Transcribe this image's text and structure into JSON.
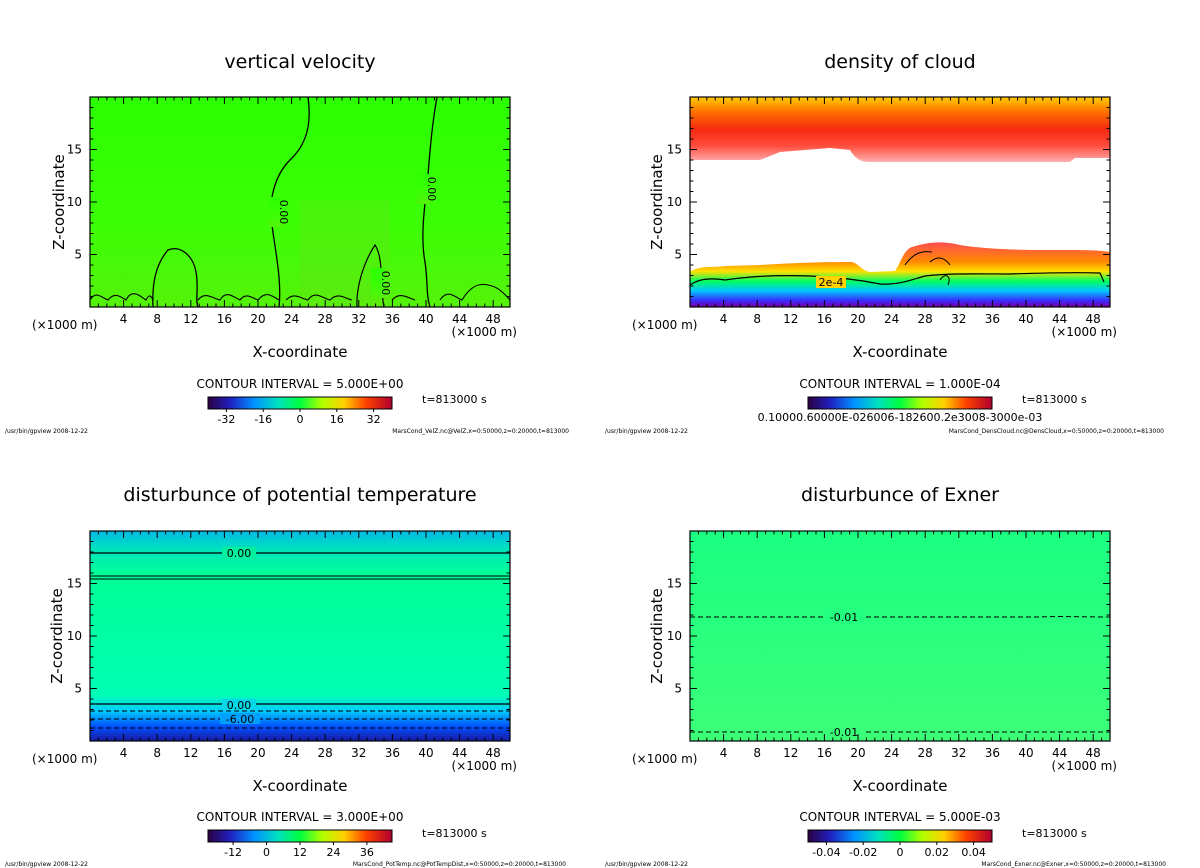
{
  "chart_data": [
    {
      "type": "heatmap",
      "title": "vertical velocity",
      "xlabel": "X-coordinate",
      "ylabel": "Z-coordinate",
      "x_unit": "(×1000 m)",
      "x_ticks": [
        "4",
        "8",
        "12",
        "16",
        "20",
        "24",
        "28",
        "32",
        "36",
        "40",
        "44",
        "48"
      ],
      "y_ticks": [
        "5",
        "10",
        "15"
      ],
      "xlim": [
        0,
        50
      ],
      "ylim": [
        0,
        20
      ],
      "contour_interval": "CONTOUR INTERVAL = 5.000E+00",
      "time": "t=813000 s",
      "colorbar_ticks": [
        "-32",
        "-16",
        "0",
        "16",
        "32"
      ],
      "colorbar_range": [
        -40,
        40
      ],
      "contour_labels": [
        {
          "text": "0.00",
          "x": 22,
          "y": 10.2,
          "rotate": 90
        },
        {
          "text": "0.00",
          "x": 40,
          "y": 11,
          "rotate": 90
        },
        {
          "text": "0.00",
          "x": 34,
          "y": 2.5,
          "rotate": 90
        }
      ],
      "footer_left": "/usr/bin/gpview  2008-12-22",
      "footer_right": "MarsCond_VelZ.nc@VelZ,x=0:50000,z=0:20000,t=813000"
    },
    {
      "type": "heatmap",
      "title": "density of cloud",
      "xlabel": "X-coordinate",
      "ylabel": "Z-coordinate",
      "x_unit": "(×1000 m)",
      "x_ticks": [
        "4",
        "8",
        "12",
        "16",
        "20",
        "24",
        "28",
        "32",
        "36",
        "40",
        "44",
        "48"
      ],
      "y_ticks": [
        "5",
        "10",
        "15"
      ],
      "xlim": [
        0,
        50
      ],
      "ylim": [
        0,
        20
      ],
      "contour_interval": "CONTOUR INTERVAL = 1.000E-04",
      "time": "t=813000 s",
      "colorbar_tick_text": "0.10000.60000E-026006-182600.2e3008-3000e-03",
      "contour_labels": [
        {
          "text": "2e-4",
          "x": 17,
          "y": 2.3,
          "rotate": 0
        }
      ],
      "footer_left": "/usr/bin/gpview  2008-12-22",
      "footer_right": "MarsCond_DensCloud.nc@DensCloud,x=0:50000,z=0:20000,t=813000"
    },
    {
      "type": "heatmap",
      "title": "disturbunce of potential temperature",
      "xlabel": "X-coordinate",
      "ylabel": "Z-coordinate",
      "x_unit": "(×1000 m)",
      "x_ticks": [
        "4",
        "8",
        "12",
        "16",
        "20",
        "24",
        "28",
        "32",
        "36",
        "40",
        "44",
        "48"
      ],
      "y_ticks": [
        "5",
        "10",
        "15"
      ],
      "xlim": [
        0,
        50
      ],
      "ylim": [
        0,
        20
      ],
      "contour_interval": "CONTOUR INTERVAL = 3.000E+00",
      "time": "t=813000 s",
      "colorbar_ticks": [
        "-12",
        "0",
        "12",
        "24",
        "36"
      ],
      "colorbar_range": [
        -21,
        45
      ],
      "contour_labels": [
        {
          "text": "0.00",
          "x": 18,
          "y": 17.8,
          "rotate": 0
        },
        {
          "text": "0.00",
          "x": 18,
          "y": 3.2,
          "rotate": 0
        },
        {
          "text": "-6.00",
          "x": 18,
          "y": 2.0,
          "rotate": 0
        }
      ],
      "footer_left": "/usr/bin/gpview  2008-12-22",
      "footer_right": "MarsCond_PotTemp.nc@PotTempDist,x=0:50000,z=0:20000,t=813000"
    },
    {
      "type": "heatmap",
      "title": "disturbunce of Exner",
      "xlabel": "X-coordinate",
      "ylabel": "Z-coordinate",
      "x_unit": "(×1000 m)",
      "x_ticks": [
        "4",
        "8",
        "12",
        "16",
        "20",
        "24",
        "28",
        "32",
        "36",
        "40",
        "44",
        "48"
      ],
      "y_ticks": [
        "5",
        "10",
        "15"
      ],
      "xlim": [
        0,
        50
      ],
      "ylim": [
        0,
        20
      ],
      "contour_interval": "CONTOUR INTERVAL = 5.000E-03",
      "time": "t=813000 s",
      "colorbar_ticks": [
        "-0.04",
        "-0.02",
        "0",
        "0.02",
        "0.04"
      ],
      "colorbar_range": [
        -0.05,
        0.05
      ],
      "contour_labels": [
        {
          "text": "-0.01",
          "x": 18,
          "y": 11.8,
          "rotate": 0
        },
        {
          "text": "-0.01",
          "x": 18,
          "y": 0.8,
          "rotate": 0
        }
      ],
      "footer_left": "/usr/bin/gpview  2008-12-22",
      "footer_right": "MarsCond_Exner.nc@Exner,x=0:50000,z=0:20000,t=813000"
    }
  ]
}
